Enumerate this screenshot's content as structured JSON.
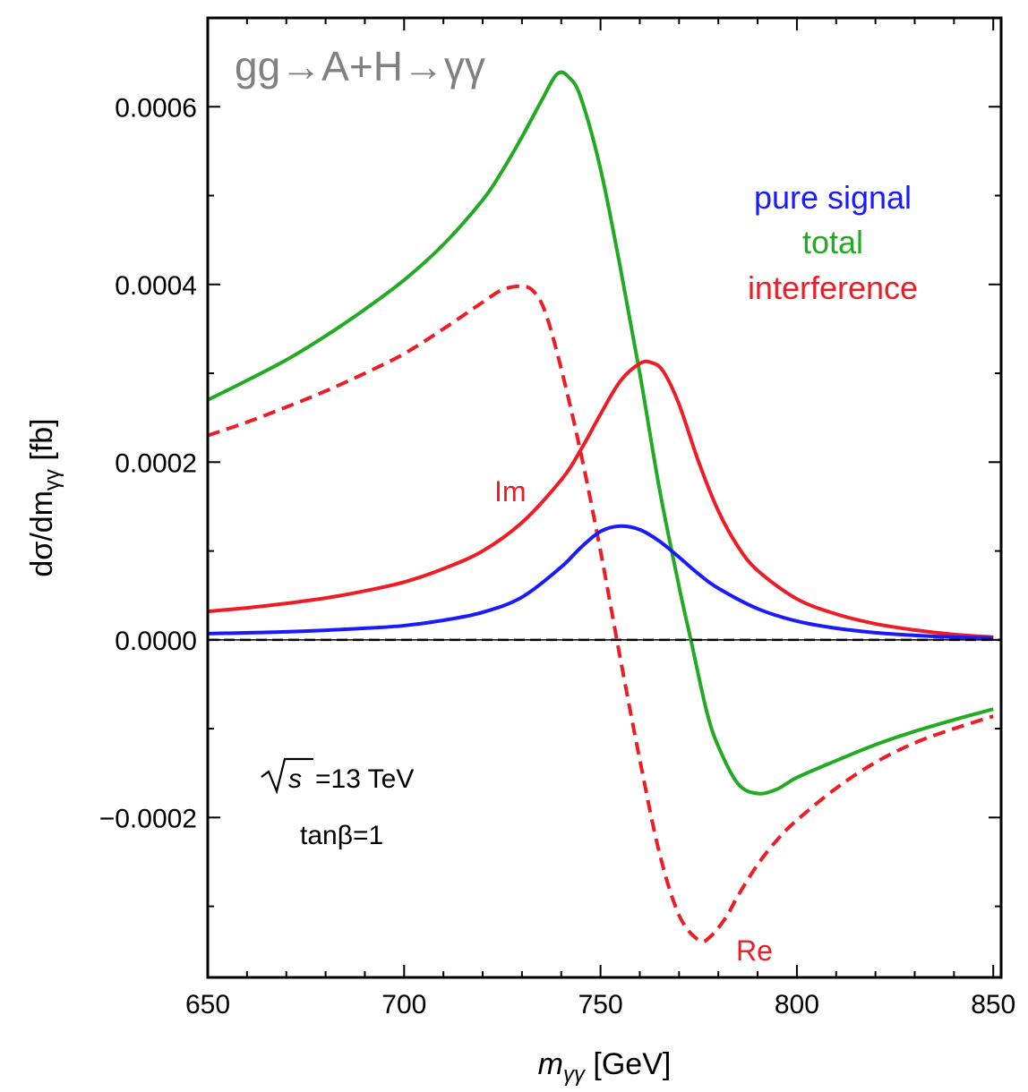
{
  "chart_data": {
    "type": "line",
    "title": "gg→A+H→γγ",
    "xlabel": {
      "main": "m",
      "sub": "γγ",
      "unit": " [GeV]"
    },
    "ylabel": {
      "pre": "dσ/dm",
      "sub": "γγ",
      "post": " [fb]"
    },
    "xlim": [
      650,
      852
    ],
    "ylim": [
      -0.00038,
      0.0007
    ],
    "x_ticks": [
      650,
      700,
      750,
      800,
      850
    ],
    "x_tick_labels": [
      "650",
      "700",
      "750",
      "800",
      "850"
    ],
    "y_ticks": [
      -0.0002,
      0.0,
      0.0002,
      0.0004,
      0.0006
    ],
    "y_tick_labels": [
      "−0.0002",
      "0.0000",
      "0.0002",
      "0.0004",
      "0.0006"
    ],
    "legend": [
      {
        "label": "pure signal",
        "color": "#1a1aff"
      },
      {
        "label": "total",
        "color": "#22aa22"
      },
      {
        "label": "interference",
        "color": "#ee1c25"
      }
    ],
    "annotations": {
      "sqrt_s": "s",
      "energy": "=13 TeV",
      "tanbeta": "tanβ=1",
      "im_label": "Im",
      "re_label": "Re"
    },
    "series": [
      {
        "name": "total",
        "color": "#22aa22",
        "style": "solid",
        "x": [
          650,
          660,
          670,
          680,
          690,
          700,
          710,
          720,
          725,
          730,
          735,
          739,
          742,
          745,
          750,
          755,
          760,
          765,
          770,
          773,
          777,
          780,
          785,
          790,
          795,
          800,
          810,
          820,
          830,
          840,
          850
        ],
        "y": [
          0.00027,
          0.000292,
          0.000315,
          0.000342,
          0.000372,
          0.000405,
          0.000445,
          0.000495,
          0.000528,
          0.000566,
          0.000607,
          0.000637,
          0.000633,
          0.00061,
          0.00053,
          0.00042,
          0.0003,
          0.00017,
          6e-05,
          0.0,
          -8e-05,
          -0.00012,
          -0.000162,
          -0.000173,
          -0.000168,
          -0.000155,
          -0.000136,
          -0.000118,
          -0.000103,
          -9e-05,
          -7.8e-05
        ]
      },
      {
        "name": "interference (Re)",
        "color": "#ee1c25",
        "style": "dashed",
        "x": [
          650,
          660,
          670,
          680,
          690,
          700,
          710,
          720,
          725,
          730,
          733,
          736,
          740,
          745,
          750,
          755,
          760,
          765,
          770,
          775,
          778,
          782,
          785,
          790,
          795,
          800,
          810,
          820,
          830,
          840,
          850
        ],
        "y": [
          0.00023,
          0.000245,
          0.000262,
          0.00028,
          0.0003,
          0.000322,
          0.00035,
          0.00038,
          0.000394,
          0.000398,
          0.000392,
          0.000368,
          0.000305,
          0.00021,
          0.0001,
          -2e-05,
          -0.000135,
          -0.00024,
          -0.00031,
          -0.000338,
          -0.000334,
          -0.000312,
          -0.000288,
          -0.000253,
          -0.000225,
          -0.000203,
          -0.000167,
          -0.000138,
          -0.000116,
          -0.0001,
          -8.6e-05
        ]
      },
      {
        "name": "interference (Im)",
        "color": "#ee1c25",
        "style": "solid",
        "x": [
          650,
          660,
          670,
          680,
          690,
          700,
          710,
          720,
          730,
          740,
          745,
          750,
          755,
          760,
          763,
          766,
          770,
          775,
          780,
          785,
          790,
          800,
          810,
          820,
          830,
          840,
          850
        ],
        "y": [
          3.2e-05,
          3.6e-05,
          4.1e-05,
          4.7e-05,
          5.5e-05,
          6.5e-05,
          8e-05,
          0.0001,
          0.000132,
          0.00018,
          0.000214,
          0.000254,
          0.000291,
          0.000311,
          0.000312,
          0.000302,
          0.000265,
          0.0002,
          0.000145,
          0.000105,
          7.8e-05,
          4.6e-05,
          2.9e-05,
          1.8e-05,
          1.1e-05,
          6e-06,
          3e-06
        ]
      },
      {
        "name": "pure signal",
        "color": "#1a1aff",
        "style": "solid",
        "x": [
          650,
          670,
          690,
          700,
          710,
          720,
          730,
          740,
          745,
          750,
          755,
          760,
          765,
          770,
          775,
          780,
          790,
          800,
          810,
          820,
          830,
          840,
          850
        ],
        "y": [
          7e-06,
          9e-06,
          1.3e-05,
          1.6e-05,
          2.2e-05,
          3.1e-05,
          4.8e-05,
          8.2e-05,
          0.000104,
          0.000122,
          0.000128,
          0.000124,
          0.000111,
          9.3e-05,
          7.4e-05,
          5.8e-05,
          3.5e-05,
          2.1e-05,
          1.3e-05,
          8e-06,
          5e-06,
          3e-06,
          2e-06
        ]
      }
    ]
  }
}
